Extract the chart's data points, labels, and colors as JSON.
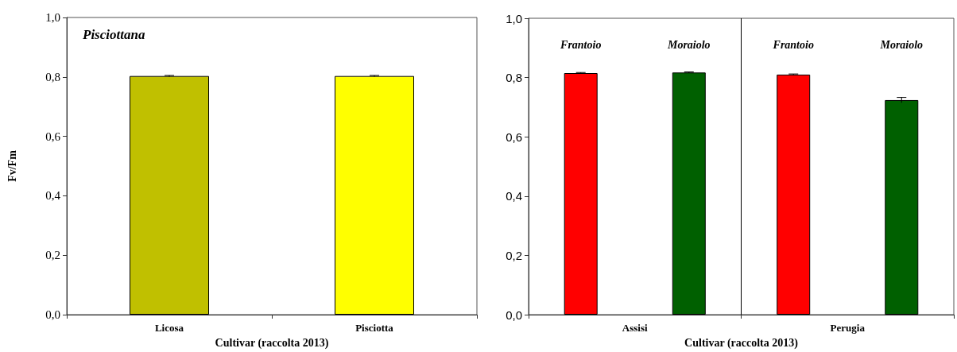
{
  "chart_data": [
    {
      "type": "bar",
      "title": "Pisciottana",
      "ylabel": "Fv/Fm",
      "xlabel": "Cultivar (raccolta 2013)",
      "categories": [
        "Licosa",
        "Pisciotta"
      ],
      "values": [
        0.803,
        0.803
      ],
      "colors": [
        "#c0c000",
        "#ffff00"
      ],
      "errors": [
        0.002,
        0.002
      ],
      "ylim": [
        0,
        1
      ],
      "yticks": [
        {
          "value": 0,
          "label": "0,0"
        },
        {
          "value": 0.2,
          "label": "0,2"
        },
        {
          "value": 0.4,
          "label": "0,4"
        },
        {
          "value": 0.6,
          "label": "0,6"
        },
        {
          "value": 0.8,
          "label": "0,8"
        },
        {
          "value": 1,
          "label": "1,0"
        }
      ],
      "legend": false
    },
    {
      "type": "bar",
      "xlabel": "Cultivar (raccolta 2013)",
      "categories": [
        "Assisi",
        "Perugia"
      ],
      "series": [
        {
          "name": "Frantoio",
          "color": "#ff0000",
          "values": [
            0.815,
            0.81
          ],
          "errors": [
            0.002,
            0.002
          ]
        },
        {
          "name": "Moraiolo",
          "color": "#006000",
          "values": [
            0.817,
            0.724
          ],
          "errors": [
            0.002,
            0.009
          ]
        }
      ],
      "ylim": [
        0,
        1
      ],
      "yticks": [
        {
          "value": 0,
          "label": "0,0"
        },
        {
          "value": 0.2,
          "label": "0,2"
        },
        {
          "value": 0.4,
          "label": "0,4"
        },
        {
          "value": 0.6,
          "label": "0,6"
        },
        {
          "value": 0.8,
          "label": "0,8"
        },
        {
          "value": 1,
          "label": "1,0"
        }
      ],
      "legend": false
    }
  ]
}
